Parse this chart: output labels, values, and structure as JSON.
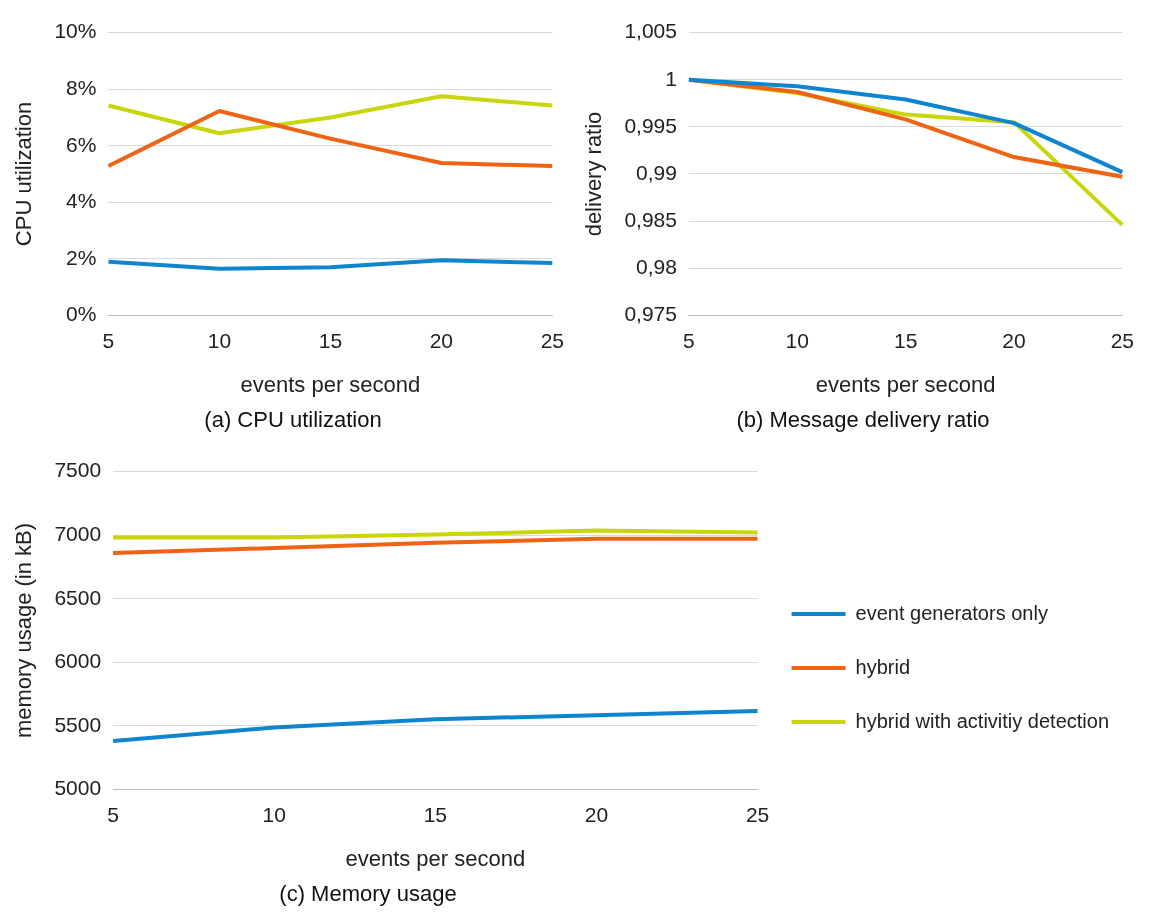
{
  "chart_data": [
    {
      "type": "line",
      "title": "(a) CPU utilization",
      "xlabel": "events per second",
      "ylabel": "CPU utilization",
      "categories": [
        "5",
        "10",
        "15",
        "20",
        "25"
      ],
      "ylim": [
        0,
        10
      ],
      "yticks": [
        {
          "value": 0,
          "label": "0%"
        },
        {
          "value": 2,
          "label": "2%"
        },
        {
          "value": 4,
          "label": "4%"
        },
        {
          "value": 6,
          "label": "6%"
        },
        {
          "value": 8,
          "label": "8%"
        },
        {
          "value": 10,
          "label": "10%"
        }
      ],
      "grid": "y",
      "legend": false,
      "marker": "none",
      "series": [
        {
          "color": "#0f85cf",
          "values": [
            1.9,
            1.65,
            1.7,
            1.95,
            1.85
          ]
        },
        {
          "color": "#ee6414",
          "values": [
            5.28,
            7.23,
            6.25,
            5.39,
            5.28
          ]
        },
        {
          "color": "#c8d60b",
          "values": [
            7.42,
            6.44,
            7.0,
            7.75,
            7.42
          ]
        }
      ]
    },
    {
      "type": "line",
      "title": "(b) Message delivery ratio",
      "xlabel": "events per second",
      "ylabel": "delivery ratio",
      "categories": [
        "5",
        "10",
        "15",
        "20",
        "25"
      ],
      "ylim": [
        0.975,
        1.005
      ],
      "yticks": [
        {
          "value": 0.975,
          "label": "0,975"
        },
        {
          "value": 0.98,
          "label": "0,98"
        },
        {
          "value": 0.985,
          "label": "0,985"
        },
        {
          "value": 0.99,
          "label": "0,99"
        },
        {
          "value": 0.995,
          "label": "0,995"
        },
        {
          "value": 1,
          "label": "1"
        },
        {
          "value": 1.005,
          "label": "1,005"
        }
      ],
      "grid": "y",
      "legend": false,
      "marker": "none",
      "series": [
        {
          "color": "#0f85cf",
          "values": [
            1.0,
            0.9993,
            0.9979,
            0.9954,
            0.9902
          ]
        },
        {
          "color": "#ee6414",
          "values": [
            1.0,
            0.9987,
            0.9958,
            0.9918,
            0.9897
          ]
        },
        {
          "color": "#c8d60b",
          "values": [
            1.0,
            0.9986,
            0.9963,
            0.9955,
            0.9846
          ]
        }
      ]
    },
    {
      "type": "line",
      "title": "(c) Memory usage",
      "xlabel": "events per second",
      "ylabel": "memory usage (in kB)",
      "categories": [
        "5",
        "10",
        "15",
        "20",
        "25"
      ],
      "ylim": [
        5000,
        7500
      ],
      "yticks": [
        5000,
        5500,
        6000,
        6500,
        7000,
        7500
      ],
      "grid": "y",
      "legend": "right",
      "marker": "none",
      "series": [
        {
          "name": "event generators only",
          "color": "#0f85cf",
          "values": [
            5380,
            5487,
            5552,
            5584,
            5617
          ]
        },
        {
          "name": "hybrid",
          "color": "#ee6414",
          "values": [
            6859,
            6899,
            6940,
            6972,
            6972
          ]
        },
        {
          "name": "hybrid with activitiy detection",
          "color": "#c8d60b",
          "values": [
            6981,
            6981,
            7005,
            7037,
            7021
          ]
        }
      ]
    }
  ]
}
